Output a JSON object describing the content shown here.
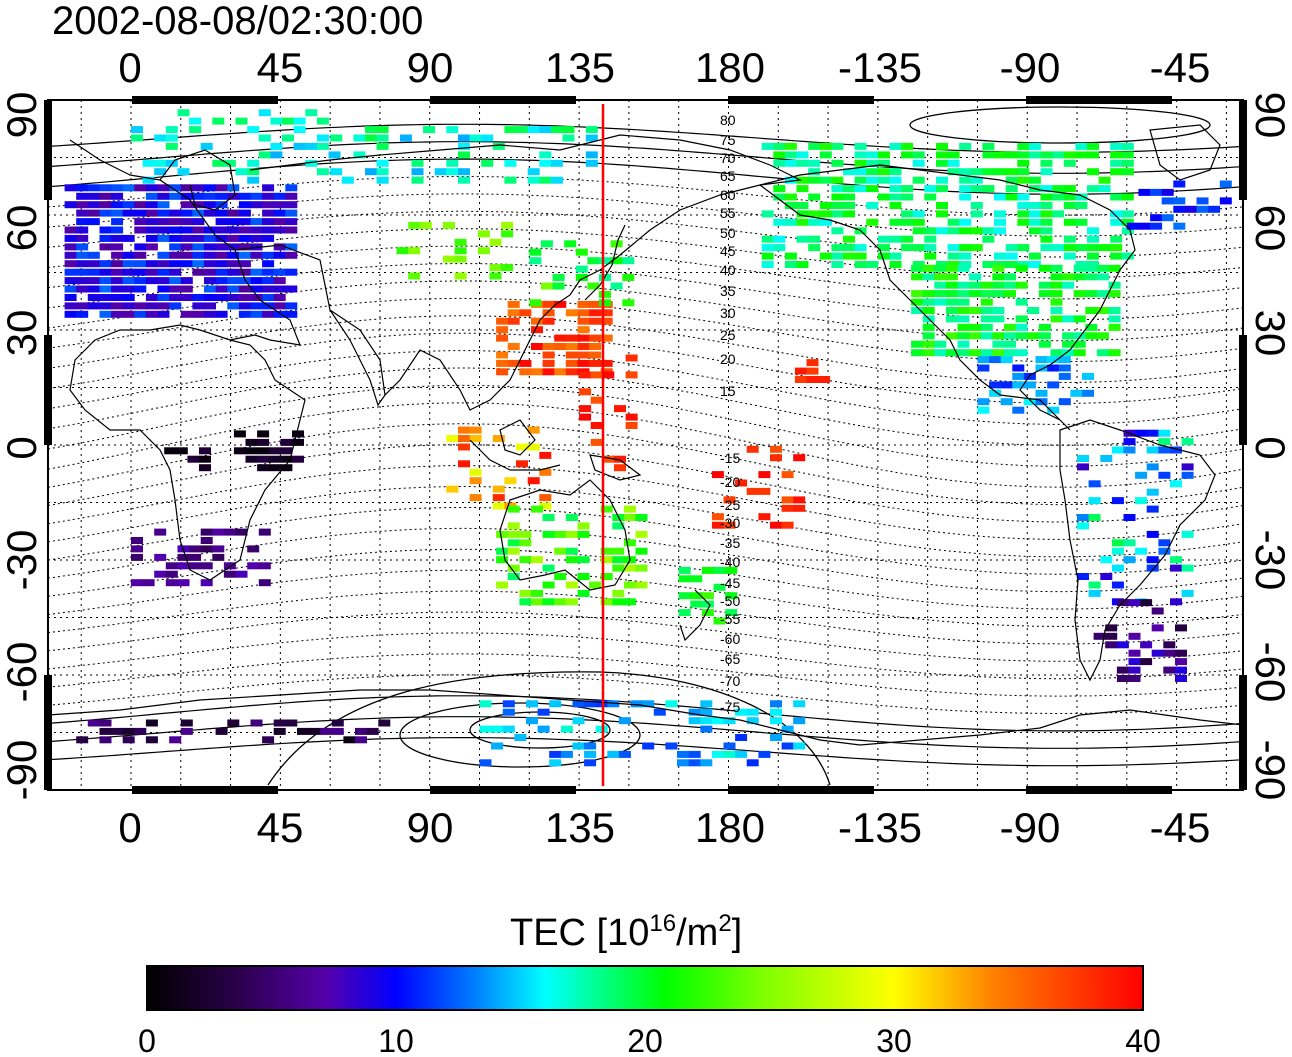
{
  "timestamp": "2002-08-08/02:30:00",
  "map": {
    "lon_ticks": [
      "0",
      "45",
      "90",
      "135",
      "180",
      "-135",
      "-90",
      "-45"
    ],
    "lat_ticks": [
      "90",
      "60",
      "30",
      "0",
      "-30",
      "-60",
      "-90"
    ],
    "magnetic_latitude_labels_north": [
      "80",
      "75",
      "70",
      "65",
      "60",
      "55",
      "50",
      "45",
      "40",
      "35",
      "30",
      "25",
      "20",
      "15"
    ],
    "magnetic_latitude_labels_south": [
      "-15",
      "-20",
      "-25",
      "-30",
      "-35",
      "-40",
      "-45",
      "-50",
      "-55",
      "-60",
      "-65",
      "-70",
      "-75"
    ],
    "meridian_marker_color": "#ff0000",
    "grid": "dotted"
  },
  "colorbar": {
    "title_main": "TEC  [10",
    "title_sup": "16",
    "title_mid": "/m",
    "title_sup2": "2",
    "title_end": "]",
    "ticks": [
      "0",
      "10",
      "20",
      "30",
      "40"
    ],
    "min": 0,
    "max": 40,
    "colors": [
      "#000000",
      "#2a004a",
      "#5500aa",
      "#0000ff",
      "#0080ff",
      "#00ffff",
      "#00ff80",
      "#00ff00",
      "#80ff00",
      "#ffff00",
      "#ff8000",
      "#ff0000"
    ]
  }
}
